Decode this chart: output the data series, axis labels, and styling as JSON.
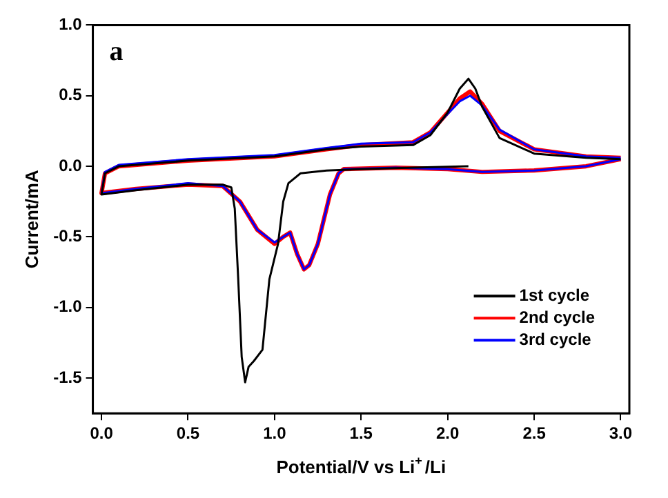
{
  "chart_data": {
    "type": "line",
    "xlabel": "Potential/V vs Li$^{+}$/Li",
    "ylabel": "Current/mA",
    "annotations": [
      "a"
    ],
    "legend": "bottom right",
    "xlim": [
      -0.05,
      3.05
    ],
    "ylim": [
      -1.75,
      1.0
    ],
    "xticks": [
      {
        "value": 0,
        "label": "0.0"
      },
      {
        "value": 0.5,
        "label": "0.5"
      },
      {
        "value": 1,
        "label": "1.0"
      },
      {
        "value": 1.5,
        "label": "1.5"
      },
      {
        "value": 2,
        "label": "2.0"
      },
      {
        "value": 2.5,
        "label": "2.5"
      },
      {
        "value": 3,
        "label": "3.0"
      }
    ],
    "yticks": [
      {
        "value": -1.5,
        "label": "-1.5"
      },
      {
        "value": -1,
        "label": "-1.0"
      },
      {
        "value": -0.5,
        "label": "-0.5"
      },
      {
        "value": 0,
        "label": "0.0"
      },
      {
        "value": 0.5,
        "label": "0.5"
      },
      {
        "value": 1,
        "label": "1.0"
      }
    ],
    "series": [
      {
        "name": "1st cycle",
        "color": "#000000",
        "x": [
          2.12,
          1.8,
          1.5,
          1.3,
          1.15,
          1.08,
          1.05,
          1.02,
          0.97,
          0.93,
          0.88,
          0.85,
          0.83,
          0.81,
          0.79,
          0.77,
          0.75,
          0.7,
          0.5,
          0.2,
          0.0,
          0.02,
          0.1,
          0.5,
          1.0,
          1.3,
          1.5,
          1.8,
          1.9,
          2.0,
          2.07,
          2.12,
          2.16,
          2.2,
          2.3,
          2.5,
          2.8,
          3.0
        ],
        "values": [
          0.0,
          -0.01,
          -0.02,
          -0.03,
          -0.05,
          -0.12,
          -0.25,
          -0.55,
          -0.8,
          -1.3,
          -1.38,
          -1.42,
          -1.53,
          -1.35,
          -0.8,
          -0.3,
          -0.15,
          -0.13,
          -0.13,
          -0.17,
          -0.2,
          -0.05,
          0.0,
          0.04,
          0.07,
          0.12,
          0.14,
          0.15,
          0.22,
          0.38,
          0.55,
          0.62,
          0.55,
          0.42,
          0.2,
          0.09,
          0.06,
          0.05
        ]
      },
      {
        "name": "2nd cycle",
        "color": "#ff0000",
        "x": [
          3.0,
          2.8,
          2.5,
          2.2,
          2.0,
          1.7,
          1.4,
          1.37,
          1.32,
          1.25,
          1.2,
          1.17,
          1.13,
          1.09,
          1.05,
          1.0,
          0.9,
          0.8,
          0.7,
          0.5,
          0.2,
          0.0,
          0.02,
          0.1,
          0.5,
          1.0,
          1.3,
          1.5,
          1.8,
          1.9,
          2.0,
          2.07,
          2.13,
          2.2,
          2.3,
          2.5,
          2.8,
          3.0
        ],
        "values": [
          0.05,
          0.0,
          -0.03,
          -0.04,
          -0.02,
          -0.01,
          -0.02,
          -0.05,
          -0.2,
          -0.55,
          -0.7,
          -0.73,
          -0.62,
          -0.47,
          -0.5,
          -0.55,
          -0.45,
          -0.25,
          -0.14,
          -0.13,
          -0.16,
          -0.19,
          -0.05,
          0.0,
          0.04,
          0.07,
          0.12,
          0.15,
          0.17,
          0.24,
          0.38,
          0.48,
          0.53,
          0.44,
          0.25,
          0.12,
          0.07,
          0.06
        ]
      },
      {
        "name": "3rd cycle",
        "color": "#0000ff",
        "x": [
          3.0,
          2.8,
          2.5,
          2.2,
          2.0,
          1.7,
          1.4,
          1.37,
          1.32,
          1.25,
          1.2,
          1.17,
          1.13,
          1.09,
          1.05,
          1.0,
          0.9,
          0.8,
          0.7,
          0.5,
          0.2,
          0.0,
          0.02,
          0.1,
          0.5,
          1.0,
          1.3,
          1.5,
          1.8,
          1.9,
          2.0,
          2.07,
          2.13,
          2.2,
          2.3,
          2.5,
          2.8,
          3.0
        ],
        "values": [
          0.05,
          0.0,
          -0.03,
          -0.04,
          -0.02,
          -0.01,
          -0.02,
          -0.05,
          -0.2,
          -0.55,
          -0.7,
          -0.73,
          -0.62,
          -0.47,
          -0.5,
          -0.54,
          -0.45,
          -0.25,
          -0.14,
          -0.12,
          -0.16,
          -0.19,
          -0.04,
          0.01,
          0.05,
          0.08,
          0.13,
          0.16,
          0.17,
          0.24,
          0.37,
          0.46,
          0.5,
          0.43,
          0.26,
          0.12,
          0.07,
          0.06
        ]
      }
    ]
  }
}
